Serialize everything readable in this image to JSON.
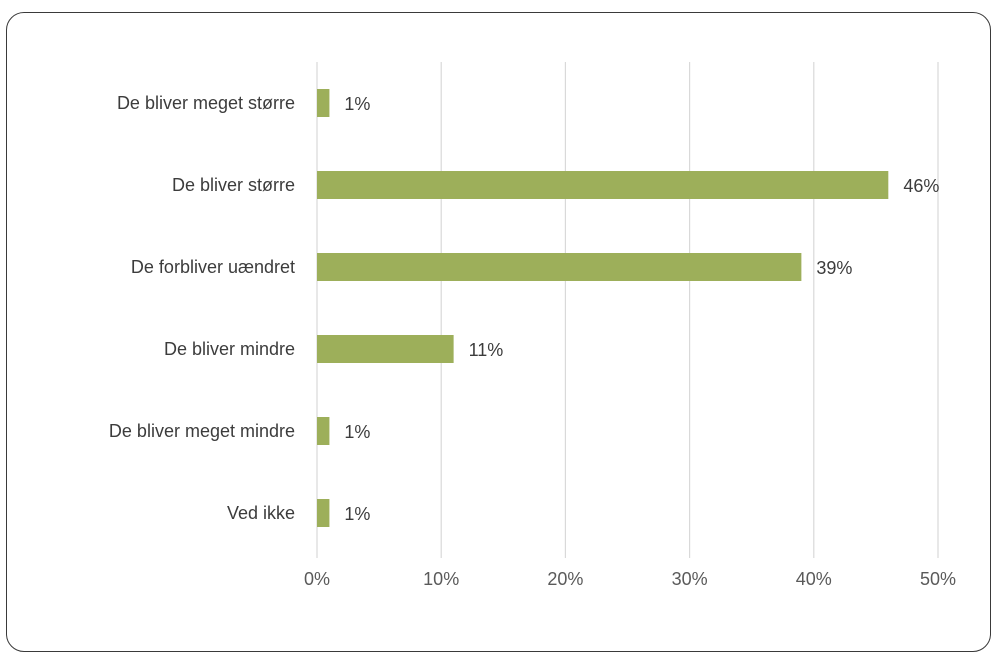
{
  "chart_data": {
    "type": "bar",
    "orientation": "horizontal",
    "title": "",
    "xlabel": "",
    "ylabel": "",
    "categories": [
      "De bliver meget større",
      "De bliver større",
      "De forbliver uændret",
      "De bliver mindre",
      "De bliver meget mindre",
      "Ved ikke"
    ],
    "values": [
      1,
      46,
      39,
      11,
      1,
      1
    ],
    "value_labels": [
      "1%",
      "46%",
      "39%",
      "11%",
      "1%",
      "1%"
    ],
    "xlim": [
      0,
      50
    ],
    "x_ticks": [
      0,
      10,
      20,
      30,
      40,
      50
    ],
    "x_tick_labels": [
      "0%",
      "10%",
      "20%",
      "30%",
      "40%",
      "50%"
    ],
    "grid": "vertical",
    "legend": "none",
    "bar_color": "#9daf5a"
  }
}
